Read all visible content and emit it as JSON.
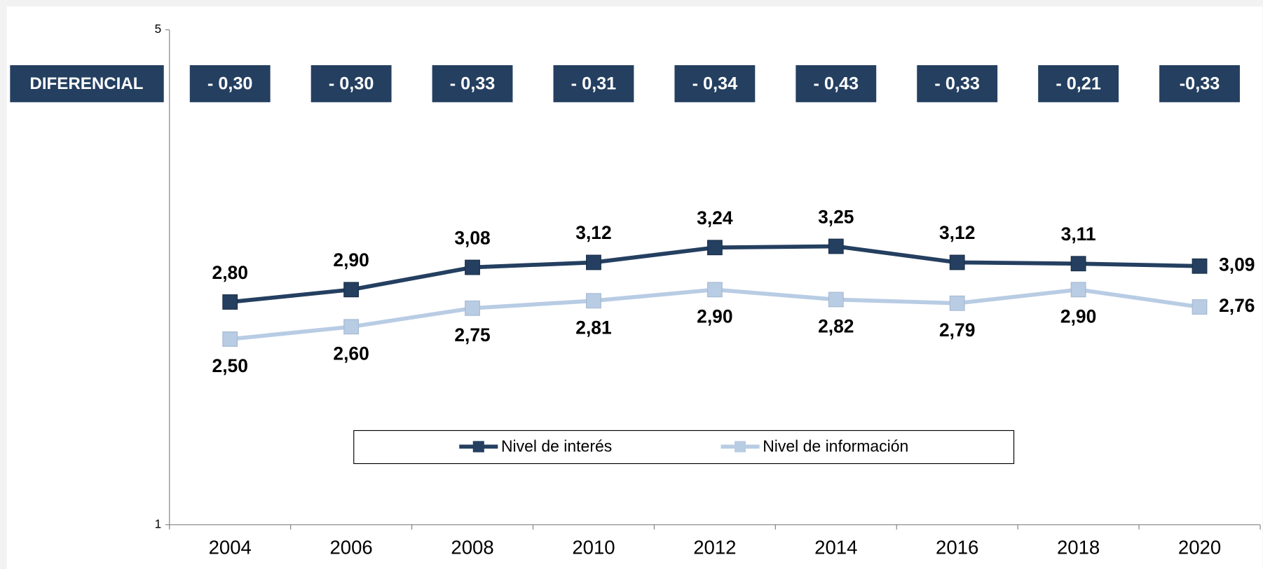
{
  "chart_data": {
    "type": "line",
    "categories": [
      "2004",
      "2006",
      "2008",
      "2010",
      "2012",
      "2014",
      "2016",
      "2018",
      "2020"
    ],
    "series": [
      {
        "name": "Nivel de interés",
        "color": "#243f60",
        "values": [
          2.8,
          2.9,
          3.08,
          3.12,
          3.24,
          3.25,
          3.12,
          3.11,
          3.09
        ],
        "value_labels": [
          "2,80",
          "2,90",
          "3,08",
          "3,12",
          "3,24",
          "3,25",
          "3,12",
          "3,11",
          "3,09"
        ]
      },
      {
        "name": "Nivel de información",
        "color": "#b8cce4",
        "values": [
          2.5,
          2.6,
          2.75,
          2.81,
          2.9,
          2.82,
          2.79,
          2.9,
          2.76
        ],
        "value_labels": [
          "2,50",
          "2,60",
          "2,75",
          "2,81",
          "2,90",
          "2,82",
          "2,79",
          "2,90",
          "2,76"
        ]
      }
    ],
    "differential": {
      "label": "DIFERENCIAL",
      "color": "#243f60",
      "values": [
        -0.3,
        -0.3,
        -0.33,
        -0.31,
        -0.34,
        -0.43,
        -0.33,
        -0.21,
        -0.33
      ],
      "value_labels": [
        "- 0,30",
        "- 0,30",
        "- 0,33",
        "- 0,31",
        "- 0,34",
        "- 0,43",
        "- 0,33",
        "- 0,21",
        "-0,33"
      ]
    },
    "ylim": [
      1,
      5
    ],
    "yticks": [
      1,
      5
    ],
    "legend": "bottom"
  }
}
